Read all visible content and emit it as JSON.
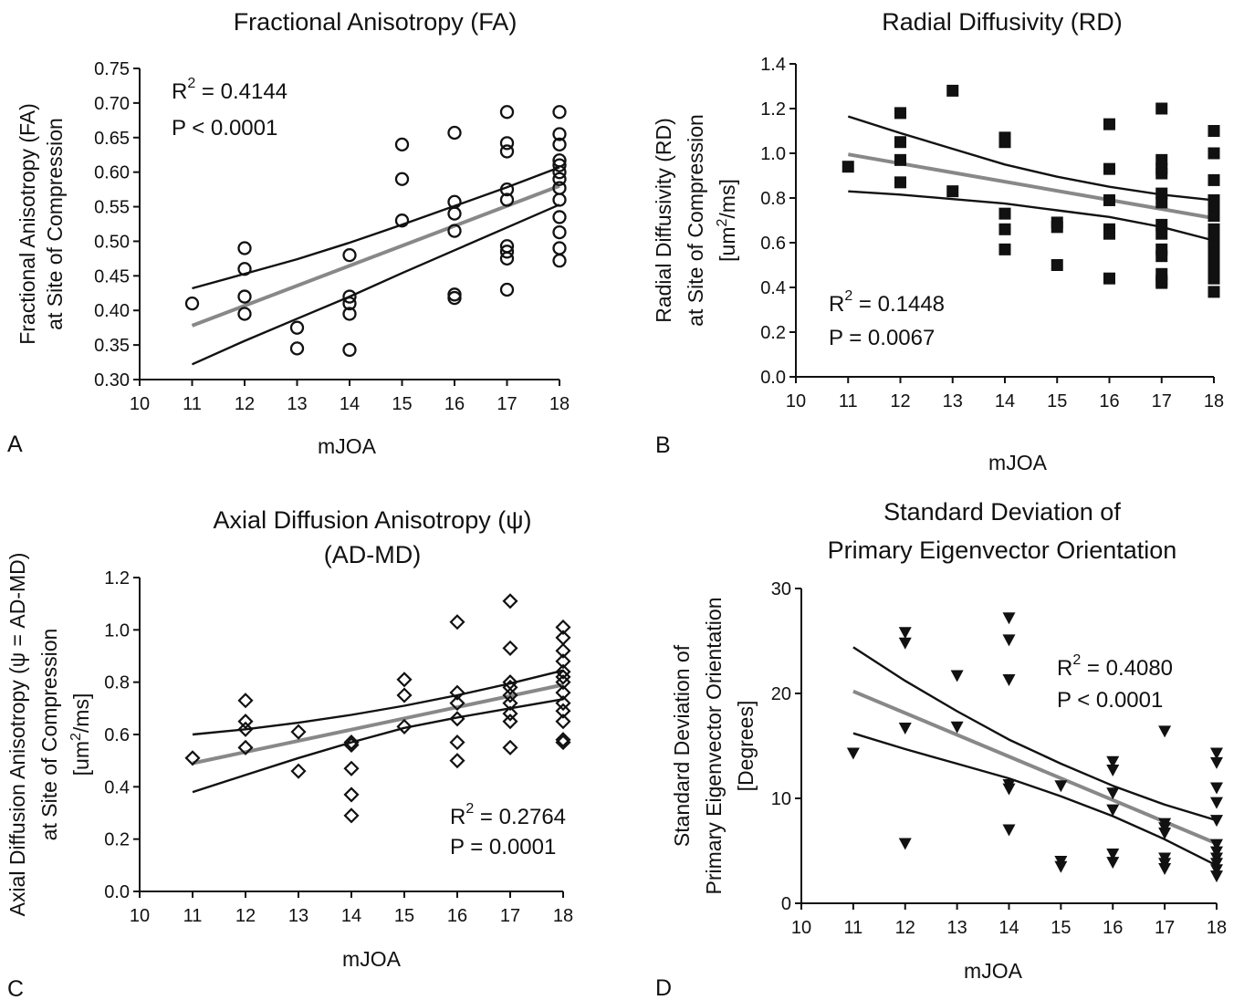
{
  "chart_data": [
    {
      "type": "scatter",
      "panel": "A",
      "title": [
        "Fractional Anisotropy (FA)"
      ],
      "xlabel": "mJOA",
      "ylabel": [
        "Fractional Anisotropy (FA)",
        "at Site of Compression"
      ],
      "xlim": [
        10,
        18
      ],
      "ylim": [
        0.3,
        0.75
      ],
      "xticks": [
        "10",
        "11",
        "12",
        "13",
        "14",
        "15",
        "16",
        "17",
        "18"
      ],
      "yticks": [
        "0.30",
        "0.35",
        "0.40",
        "0.45",
        "0.50",
        "0.55",
        "0.60",
        "0.65",
        "0.70",
        "0.75"
      ],
      "marker": "open-circle",
      "stats": {
        "r2_label": "R",
        "r2_sup": "2",
        "r2_value": " = 0.4144",
        "p_label": "P < 0.0001"
      },
      "grid": false,
      "points": [
        [
          11,
          0.41
        ],
        [
          12,
          0.49
        ],
        [
          12,
          0.46
        ],
        [
          12,
          0.42
        ],
        [
          12,
          0.395
        ],
        [
          13,
          0.375
        ],
        [
          13,
          0.345
        ],
        [
          14,
          0.48
        ],
        [
          14,
          0.42
        ],
        [
          14,
          0.41
        ],
        [
          14,
          0.395
        ],
        [
          14,
          0.343
        ],
        [
          15,
          0.64
        ],
        [
          15,
          0.59
        ],
        [
          15,
          0.53
        ],
        [
          16,
          0.657
        ],
        [
          16,
          0.557
        ],
        [
          16,
          0.54
        ],
        [
          16,
          0.515
        ],
        [
          16,
          0.423
        ],
        [
          16,
          0.418
        ],
        [
          17,
          0.687
        ],
        [
          17,
          0.642
        ],
        [
          17,
          0.63
        ],
        [
          17,
          0.575
        ],
        [
          17,
          0.56
        ],
        [
          17,
          0.493
        ],
        [
          17,
          0.485
        ],
        [
          17,
          0.475
        ],
        [
          17,
          0.43
        ],
        [
          18,
          0.687
        ],
        [
          18,
          0.655
        ],
        [
          18,
          0.64
        ],
        [
          18,
          0.617
        ],
        [
          18,
          0.61
        ],
        [
          18,
          0.6
        ],
        [
          18,
          0.59
        ],
        [
          18,
          0.577
        ],
        [
          18,
          0.56
        ],
        [
          18,
          0.535
        ],
        [
          18,
          0.513
        ],
        [
          18,
          0.49
        ],
        [
          18,
          0.472
        ]
      ],
      "fit": {
        "x": [
          11,
          18
        ],
        "y": [
          0.378,
          0.58
        ]
      },
      "ci_upper": {
        "x": [
          11,
          12,
          13,
          14,
          15,
          16,
          17,
          18
        ],
        "y": [
          0.432,
          0.453,
          0.474,
          0.498,
          0.524,
          0.551,
          0.578,
          0.607
        ]
      },
      "ci_lower": {
        "x": [
          11,
          12,
          13,
          14,
          15,
          16,
          17,
          18
        ],
        "y": [
          0.322,
          0.356,
          0.388,
          0.42,
          0.454,
          0.487,
          0.52,
          0.553
        ]
      }
    },
    {
      "type": "scatter",
      "panel": "B",
      "title": [
        "Radial Diffusivity (RD)"
      ],
      "xlabel": "mJOA",
      "ylabel": [
        "Radial Diffusivity (RD)",
        "at Site of Compression",
        "[um",
        "2",
        "/ms]"
      ],
      "xlim": [
        10,
        18
      ],
      "ylim": [
        0.0,
        1.4
      ],
      "xticks": [
        "10",
        "11",
        "12",
        "13",
        "14",
        "15",
        "16",
        "17",
        "18"
      ],
      "yticks": [
        "0.0",
        "0.2",
        "0.4",
        "0.6",
        "0.8",
        "1.0",
        "1.2",
        "1.4"
      ],
      "marker": "filled-square",
      "stats": {
        "r2_label": "R",
        "r2_sup": "2",
        "r2_value": " = 0.1448",
        "p_label": "P = 0.0067"
      },
      "grid": false,
      "points": [
        [
          11,
          0.94
        ],
        [
          12,
          1.18
        ],
        [
          12,
          1.05
        ],
        [
          12,
          0.97
        ],
        [
          12,
          0.87
        ],
        [
          13,
          1.28
        ],
        [
          13,
          0.83
        ],
        [
          14,
          1.07
        ],
        [
          14,
          1.05
        ],
        [
          14,
          0.73
        ],
        [
          14,
          0.66
        ],
        [
          14,
          0.57
        ],
        [
          15,
          0.69
        ],
        [
          15,
          0.67
        ],
        [
          15,
          0.5
        ],
        [
          16,
          1.13
        ],
        [
          16,
          0.93
        ],
        [
          16,
          0.79
        ],
        [
          16,
          0.66
        ],
        [
          16,
          0.64
        ],
        [
          16,
          0.44
        ],
        [
          17,
          1.2
        ],
        [
          17,
          0.97
        ],
        [
          17,
          0.93
        ],
        [
          17,
          0.91
        ],
        [
          17,
          0.82
        ],
        [
          17,
          0.78
        ],
        [
          17,
          0.68
        ],
        [
          17,
          0.64
        ],
        [
          17,
          0.57
        ],
        [
          17,
          0.54
        ],
        [
          17,
          0.46
        ],
        [
          17,
          0.43
        ],
        [
          17,
          0.42
        ],
        [
          18,
          1.1
        ],
        [
          18,
          1.0
        ],
        [
          18,
          0.88
        ],
        [
          18,
          0.79
        ],
        [
          18,
          0.76
        ],
        [
          18,
          0.72
        ],
        [
          18,
          0.66
        ],
        [
          18,
          0.61
        ],
        [
          18,
          0.58
        ],
        [
          18,
          0.55
        ],
        [
          18,
          0.52
        ],
        [
          18,
          0.49
        ],
        [
          18,
          0.46
        ],
        [
          18,
          0.44
        ],
        [
          18,
          0.38
        ]
      ],
      "fit": {
        "x": [
          11,
          18
        ],
        "y": [
          0.995,
          0.71
        ]
      },
      "ci_upper": {
        "x": [
          11,
          12,
          13,
          14,
          15,
          16,
          17,
          18
        ],
        "y": [
          1.165,
          1.09,
          1.02,
          0.95,
          0.895,
          0.85,
          0.815,
          0.79
        ]
      },
      "ci_lower": {
        "x": [
          11,
          12,
          13,
          14,
          15,
          16,
          17,
          18
        ],
        "y": [
          0.83,
          0.815,
          0.795,
          0.775,
          0.745,
          0.715,
          0.67,
          0.61
        ]
      }
    },
    {
      "type": "scatter",
      "panel": "C",
      "title": [
        "Axial Diffusion Anisotropy (ψ)",
        "(AD-MD)"
      ],
      "xlabel": "mJOA",
      "ylabel": [
        "Axial Diffusion Anisotropy (ψ = AD-MD)",
        "at Site of Compression",
        "[um",
        "2",
        "/ms]"
      ],
      "xlim": [
        10,
        18
      ],
      "ylim": [
        0.0,
        1.2
      ],
      "xticks": [
        "10",
        "11",
        "12",
        "13",
        "14",
        "15",
        "16",
        "17",
        "18"
      ],
      "yticks": [
        "0.0",
        "0.2",
        "0.4",
        "0.6",
        "0.8",
        "1.0",
        "1.2"
      ],
      "marker": "open-diamond",
      "stats": {
        "r2_label": "R",
        "r2_sup": "2",
        "r2_value": " = 0.2764",
        "p_label": "P = 0.0001"
      },
      "grid": false,
      "points": [
        [
          11,
          0.51
        ],
        [
          12,
          0.73
        ],
        [
          12,
          0.65
        ],
        [
          12,
          0.62
        ],
        [
          12,
          0.55
        ],
        [
          13,
          0.61
        ],
        [
          13,
          0.46
        ],
        [
          14,
          0.57
        ],
        [
          14,
          0.56
        ],
        [
          14,
          0.47
        ],
        [
          14,
          0.37
        ],
        [
          14,
          0.29
        ],
        [
          15,
          0.81
        ],
        [
          15,
          0.75
        ],
        [
          15,
          0.63
        ],
        [
          16,
          1.03
        ],
        [
          16,
          0.76
        ],
        [
          16,
          0.72
        ],
        [
          16,
          0.66
        ],
        [
          16,
          0.57
        ],
        [
          16,
          0.5
        ],
        [
          17,
          1.11
        ],
        [
          17,
          0.93
        ],
        [
          17,
          0.8
        ],
        [
          17,
          0.78
        ],
        [
          17,
          0.75
        ],
        [
          17,
          0.72
        ],
        [
          17,
          0.68
        ],
        [
          17,
          0.65
        ],
        [
          17,
          0.55
        ],
        [
          18,
          1.01
        ],
        [
          18,
          0.97
        ],
        [
          18,
          0.92
        ],
        [
          18,
          0.88
        ],
        [
          18,
          0.84
        ],
        [
          18,
          0.82
        ],
        [
          18,
          0.8
        ],
        [
          18,
          0.76
        ],
        [
          18,
          0.72
        ],
        [
          18,
          0.69
        ],
        [
          18,
          0.65
        ],
        [
          18,
          0.58
        ],
        [
          18,
          0.57
        ]
      ],
      "fit": {
        "x": [
          11,
          18
        ],
        "y": [
          0.49,
          0.79
        ]
      },
      "ci_upper": {
        "x": [
          11,
          12,
          13,
          14,
          15,
          16,
          17,
          18
        ],
        "y": [
          0.6,
          0.62,
          0.645,
          0.675,
          0.71,
          0.75,
          0.795,
          0.845
        ]
      },
      "ci_lower": {
        "x": [
          11,
          12,
          13,
          14,
          15,
          16,
          17,
          18
        ],
        "y": [
          0.38,
          0.445,
          0.51,
          0.57,
          0.625,
          0.665,
          0.7,
          0.735
        ]
      }
    },
    {
      "type": "scatter",
      "panel": "D",
      "title": [
        "Standard Deviation of",
        "Primary Eigenvector Orientation"
      ],
      "xlabel": "mJOA",
      "ylabel": [
        "Standard Deviation of",
        "Primary Eigenvector Orientation",
        "[Degrees]"
      ],
      "xlim": [
        10,
        18
      ],
      "ylim": [
        0,
        30
      ],
      "xticks": [
        "10",
        "11",
        "12",
        "13",
        "14",
        "15",
        "16",
        "17",
        "18"
      ],
      "yticks": [
        "0",
        "10",
        "20",
        "30"
      ],
      "marker": "filled-triangle-down",
      "stats": {
        "r2_label": "R",
        "r2_sup": "2",
        "r2_value": " = 0.4080",
        "p_label": "P < 0.0001"
      },
      "grid": false,
      "points": [
        [
          11,
          14.3
        ],
        [
          12,
          25.8
        ],
        [
          12,
          24.8
        ],
        [
          12,
          16.7
        ],
        [
          12,
          5.7
        ],
        [
          13,
          21.7
        ],
        [
          13,
          16.8
        ],
        [
          14,
          27.2
        ],
        [
          14,
          25.1
        ],
        [
          14,
          21.3
        ],
        [
          14,
          11.3
        ],
        [
          14,
          10.9
        ],
        [
          14,
          7.0
        ],
        [
          15,
          11.2
        ],
        [
          15,
          4.0
        ],
        [
          15,
          3.5
        ],
        [
          16,
          13.5
        ],
        [
          16,
          12.7
        ],
        [
          16,
          10.5
        ],
        [
          16,
          8.9
        ],
        [
          16,
          4.7
        ],
        [
          16,
          3.9
        ],
        [
          17,
          16.4
        ],
        [
          17,
          7.6
        ],
        [
          17,
          7.2
        ],
        [
          17,
          6.7
        ],
        [
          17,
          4.3
        ],
        [
          17,
          3.8
        ],
        [
          17,
          3.3
        ],
        [
          18,
          14.3
        ],
        [
          18,
          13.4
        ],
        [
          18,
          11.0
        ],
        [
          18,
          9.6
        ],
        [
          18,
          7.9
        ],
        [
          18,
          5.6
        ],
        [
          18,
          4.9
        ],
        [
          18,
          4.3
        ],
        [
          18,
          3.8
        ],
        [
          18,
          3.2
        ],
        [
          18,
          2.6
        ]
      ],
      "fit": {
        "x": [
          11,
          18
        ],
        "y": [
          20.2,
          5.7
        ]
      },
      "ci_upper": {
        "x": [
          11,
          12,
          13,
          14,
          15,
          16,
          17,
          18
        ],
        "y": [
          24.4,
          21.2,
          18.3,
          15.6,
          13.3,
          11.2,
          9.4,
          7.9
        ]
      },
      "ci_lower": {
        "x": [
          11,
          12,
          13,
          14,
          15,
          16,
          17,
          18
        ],
        "y": [
          16.2,
          14.7,
          13.3,
          11.9,
          10.2,
          8.3,
          6.1,
          3.6
        ]
      }
    }
  ]
}
